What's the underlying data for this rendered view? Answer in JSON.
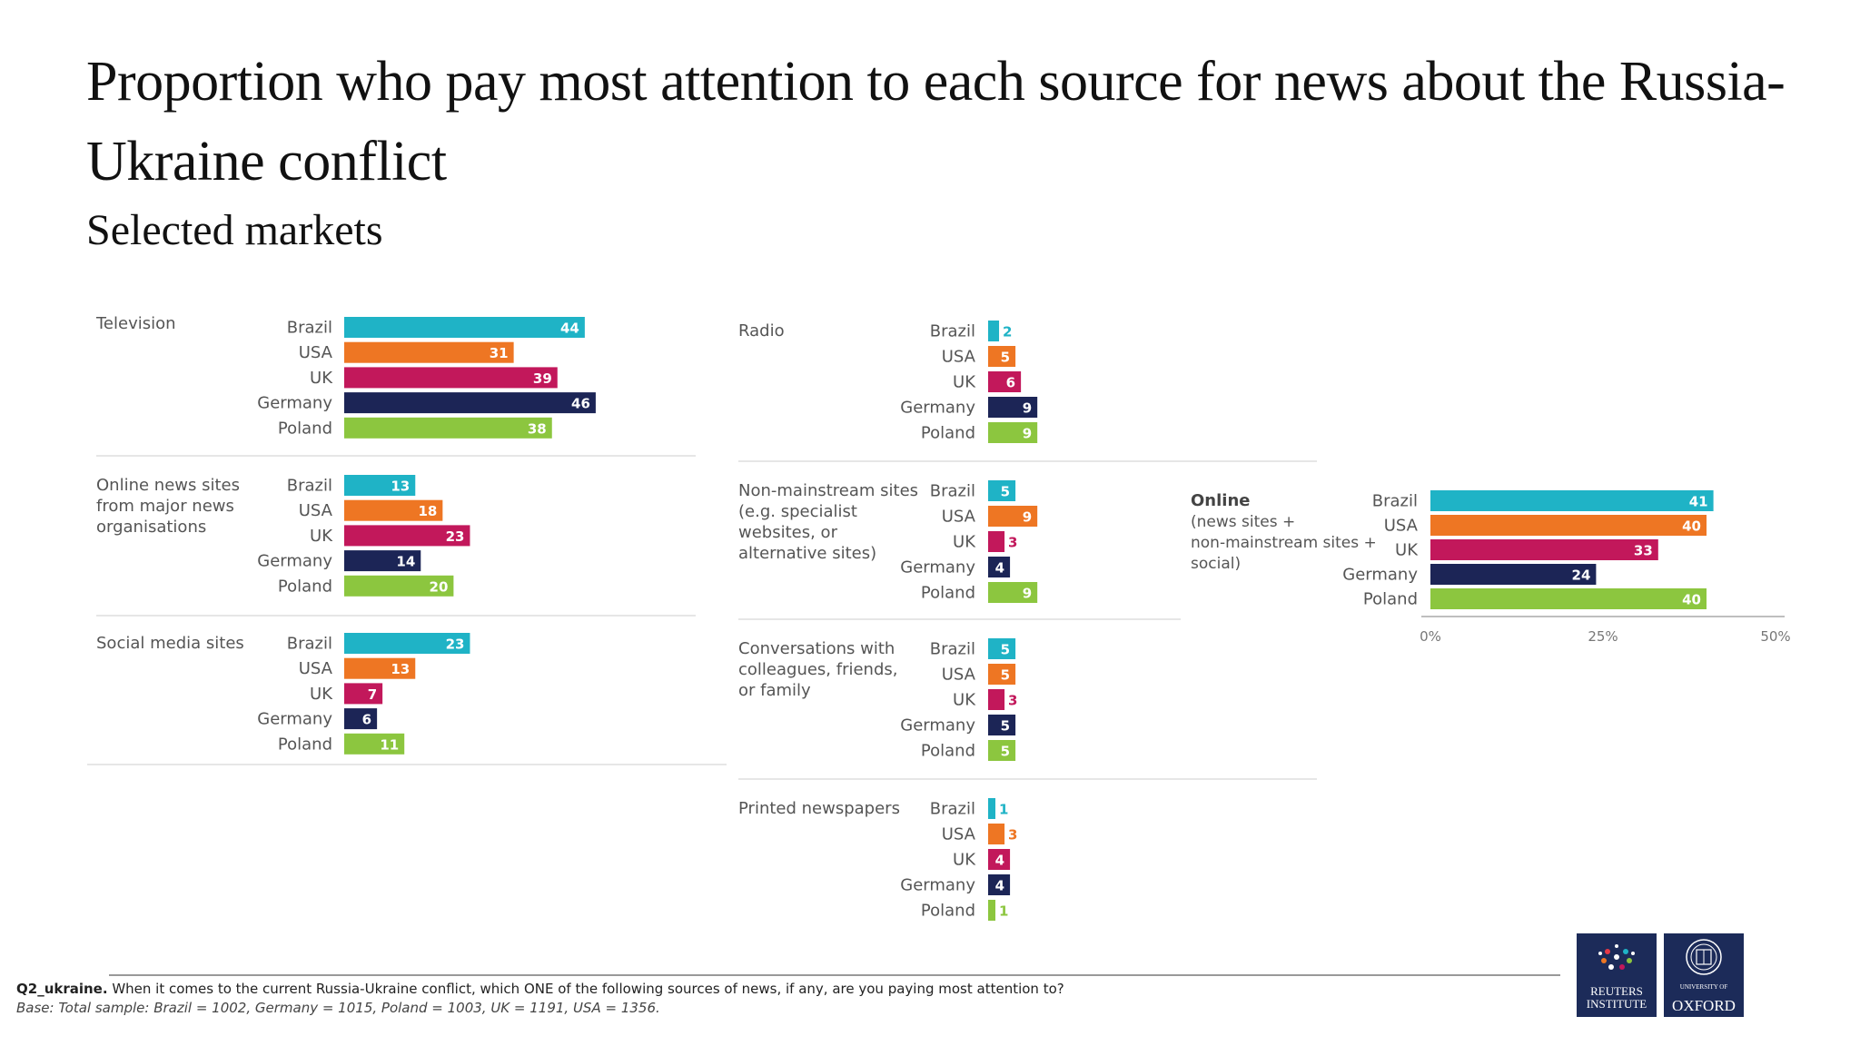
{
  "title": "Proportion who pay most attention to each source for news about the Russia-Ukraine conflict",
  "subtitle": "Selected markets",
  "colors": {
    "Brazil": "#1fb3c6",
    "USA": "#ee7623",
    "UK": "#c2185b",
    "Germany": "#1c2556",
    "Poland": "#8cc63f",
    "label_text": "#555555",
    "rule": "#dddddd"
  },
  "chart_data": [
    {
      "type": "bar",
      "orientation": "horizontal",
      "title": "Television",
      "categories": [
        "Brazil",
        "USA",
        "UK",
        "Germany",
        "Poland"
      ],
      "values": [
        44,
        31,
        39,
        46,
        38
      ]
    },
    {
      "type": "bar",
      "orientation": "horizontal",
      "title": "Online news sites from major news organisations",
      "categories": [
        "Brazil",
        "USA",
        "UK",
        "Germany",
        "Poland"
      ],
      "values": [
        13,
        18,
        23,
        14,
        20
      ]
    },
    {
      "type": "bar",
      "orientation": "horizontal",
      "title": "Social media sites",
      "categories": [
        "Brazil",
        "USA",
        "UK",
        "Germany",
        "Poland"
      ],
      "values": [
        23,
        13,
        7,
        6,
        11
      ]
    },
    {
      "type": "bar",
      "orientation": "horizontal",
      "title": "Radio",
      "categories": [
        "Brazil",
        "USA",
        "UK",
        "Germany",
        "Poland"
      ],
      "values": [
        2,
        5,
        6,
        9,
        9
      ]
    },
    {
      "type": "bar",
      "orientation": "horizontal",
      "title": "Non-mainstream sites (e.g. specialist websites, or alternative sites)",
      "categories": [
        "Brazil",
        "USA",
        "UK",
        "Germany",
        "Poland"
      ],
      "values": [
        5,
        9,
        3,
        4,
        9
      ]
    },
    {
      "type": "bar",
      "orientation": "horizontal",
      "title": "Conversations with colleagues, friends, or family",
      "categories": [
        "Brazil",
        "USA",
        "UK",
        "Germany",
        "Poland"
      ],
      "values": [
        5,
        5,
        3,
        5,
        5
      ]
    },
    {
      "type": "bar",
      "orientation": "horizontal",
      "title": "Printed newspapers",
      "categories": [
        "Brazil",
        "USA",
        "UK",
        "Germany",
        "Poland"
      ],
      "values": [
        1,
        3,
        4,
        4,
        1
      ]
    },
    {
      "type": "bar",
      "orientation": "horizontal",
      "title": "Online",
      "subtitle": "(news sites + non-mainstream sites + social)",
      "categories": [
        "Brazil",
        "USA",
        "UK",
        "Germany",
        "Poland"
      ],
      "values": [
        41,
        40,
        33,
        24,
        40
      ],
      "xticks": [
        "0%",
        "25%",
        "50%"
      ],
      "xlim": [
        0,
        50
      ]
    }
  ],
  "footnote": {
    "question_label": "Q2_ukraine.",
    "question_text": " When it comes to the current Russia-Ukraine conflict, which ONE of the following sources of news, if any, are you paying most attention to?",
    "base": "Base: Total sample: Brazil = 1002, Germany = 1015, Poland = 1003, UK = 1191, USA = 1356."
  },
  "logos": {
    "reuters_line1": "REUTERS",
    "reuters_line2": "INSTITUTE",
    "oxford_line1": "UNIVERSITY OF",
    "oxford_line2": "OXFORD"
  }
}
